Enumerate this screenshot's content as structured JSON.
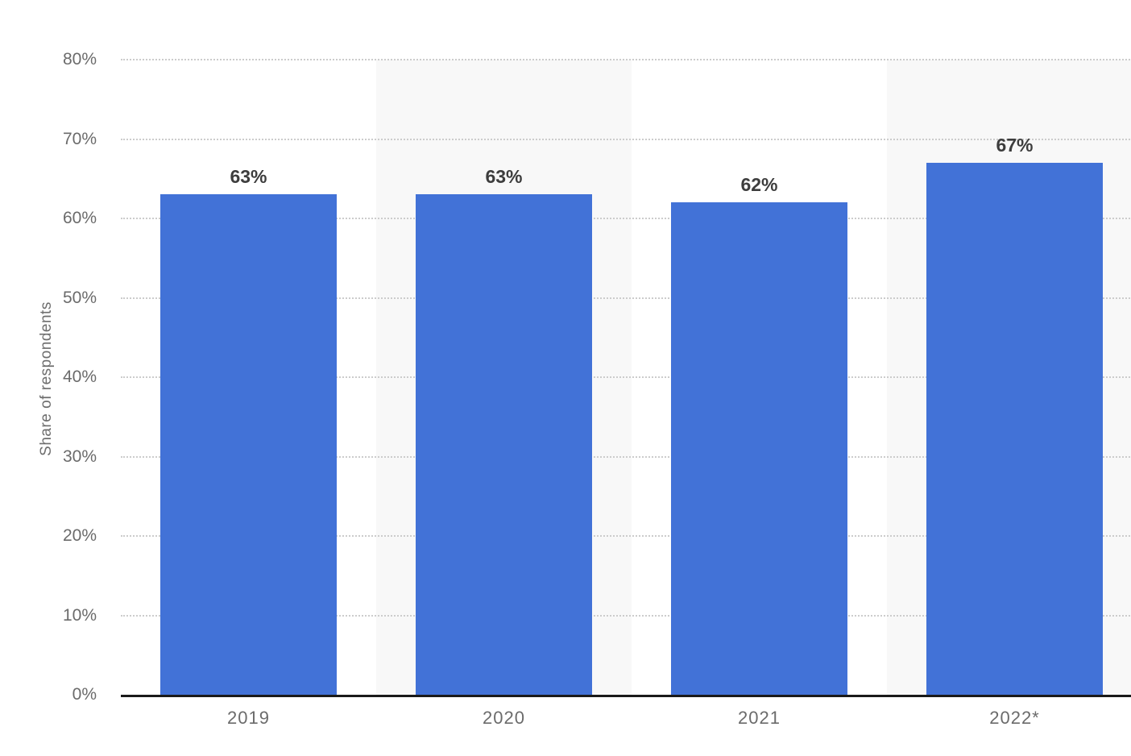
{
  "chart_data": {
    "type": "bar",
    "title": "",
    "xlabel": "",
    "ylabel": "Share of respondents",
    "categories": [
      "2019",
      "2020",
      "2021",
      "2022*"
    ],
    "values": [
      63,
      63,
      62,
      67
    ],
    "value_labels": [
      "63%",
      "63%",
      "62%",
      "67%"
    ],
    "ylim": [
      0,
      80
    ],
    "ytick_labels": [
      "80%",
      "70%",
      "60%",
      "50%",
      "40%",
      "30%",
      "20%",
      "10%",
      "0%"
    ],
    "grid": "horizontal dotted lines at 10% steps, alternating light column bands behind 2020 and 2022",
    "legend": "none",
    "colors": {
      "bar": "#4272d7",
      "band": "#f8f8f8",
      "axis": "#1a1a1a",
      "grid": "#cccccc",
      "tick_text": "#6b6b6b",
      "value_label_text": "#3d3d3d"
    }
  }
}
